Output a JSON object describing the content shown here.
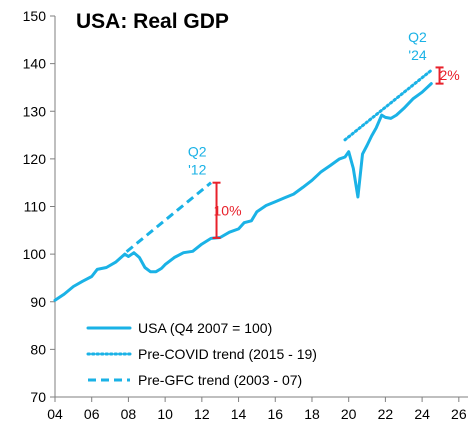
{
  "chart_data": {
    "type": "line",
    "title": "USA: Real GDP",
    "xlabel": "",
    "ylabel": "",
    "xlim": [
      2004,
      2026.5
    ],
    "ylim": [
      70,
      150
    ],
    "x_ticks": [
      2004,
      2006,
      2008,
      2010,
      2012,
      2014,
      2016,
      2018,
      2020,
      2022,
      2024,
      2026
    ],
    "x_tick_labels": [
      "04",
      "06",
      "08",
      "10",
      "12",
      "14",
      "16",
      "18",
      "20",
      "22",
      "24",
      "26"
    ],
    "y_ticks": [
      70,
      80,
      90,
      100,
      110,
      120,
      130,
      140,
      150
    ],
    "grid": false,
    "legend_position": "bottom-left",
    "colors": {
      "series": "#1ab2e6",
      "gap": "#e8212b"
    },
    "series": [
      {
        "name": "USA (Q4 2007 = 100)",
        "style": "solid",
        "points": [
          [
            2004.0,
            90.3
          ],
          [
            2004.5,
            91.6
          ],
          [
            2005.0,
            93.2
          ],
          [
            2005.5,
            94.3
          ],
          [
            2006.0,
            95.3
          ],
          [
            2006.3,
            96.8
          ],
          [
            2006.8,
            97.2
          ],
          [
            2007.3,
            98.3
          ],
          [
            2007.8,
            100.0
          ],
          [
            2008.0,
            99.5
          ],
          [
            2008.3,
            100.3
          ],
          [
            2008.6,
            99.3
          ],
          [
            2008.9,
            97.2
          ],
          [
            2009.2,
            96.3
          ],
          [
            2009.5,
            96.3
          ],
          [
            2009.8,
            97.0
          ],
          [
            2010.0,
            97.8
          ],
          [
            2010.5,
            99.3
          ],
          [
            2011.0,
            100.3
          ],
          [
            2011.5,
            100.6
          ],
          [
            2012.0,
            102.1
          ],
          [
            2012.5,
            103.3
          ],
          [
            2013.0,
            103.5
          ],
          [
            2013.5,
            104.6
          ],
          [
            2014.0,
            105.3
          ],
          [
            2014.3,
            106.6
          ],
          [
            2014.7,
            107.0
          ],
          [
            2015.0,
            108.9
          ],
          [
            2015.5,
            110.2
          ],
          [
            2016.0,
            111.0
          ],
          [
            2016.5,
            111.8
          ],
          [
            2017.0,
            112.6
          ],
          [
            2017.5,
            114.0
          ],
          [
            2018.0,
            115.5
          ],
          [
            2018.5,
            117.3
          ],
          [
            2019.0,
            118.6
          ],
          [
            2019.5,
            120.0
          ],
          [
            2019.8,
            120.4
          ],
          [
            2020.0,
            121.5
          ],
          [
            2020.25,
            118.0
          ],
          [
            2020.5,
            112.0
          ],
          [
            2020.75,
            121.0
          ],
          [
            2021.0,
            122.8
          ],
          [
            2021.25,
            124.8
          ],
          [
            2021.5,
            126.5
          ],
          [
            2021.8,
            129.2
          ],
          [
            2022.0,
            128.7
          ],
          [
            2022.3,
            128.5
          ],
          [
            2022.6,
            129.2
          ],
          [
            2023.0,
            130.6
          ],
          [
            2023.5,
            132.6
          ],
          [
            2024.0,
            134.0
          ],
          [
            2024.5,
            135.8
          ]
        ]
      },
      {
        "name": "Pre-COVID trend (2015 - 19)",
        "style": "dotted",
        "points": [
          [
            2019.8,
            124.0
          ],
          [
            2024.5,
            138.6
          ]
        ]
      },
      {
        "name": "Pre-GFC trend (2003 - 07)",
        "style": "dashed",
        "points": [
          [
            2007.9,
            100.5
          ],
          [
            2012.5,
            115.0
          ]
        ]
      }
    ],
    "annotations": [
      {
        "label": "Q2\n'12",
        "x": 2011.75,
        "y": 120.5,
        "color": "#1ab2e6"
      },
      {
        "label": "Q2\n'24",
        "x": 2023.75,
        "y": 144.5,
        "color": "#1ab2e6"
      },
      {
        "label": "10%",
        "x": 2013.4,
        "y": 109.2,
        "color": "#e8212b",
        "gap_from": 103.4,
        "gap_to": 115.0,
        "gap_x": 2012.8
      },
      {
        "label": "2%",
        "x": 2025.5,
        "y": 137.6,
        "color": "#e8212b",
        "gap_from": 135.8,
        "gap_to": 139.2,
        "gap_x": 2024.95
      }
    ]
  }
}
